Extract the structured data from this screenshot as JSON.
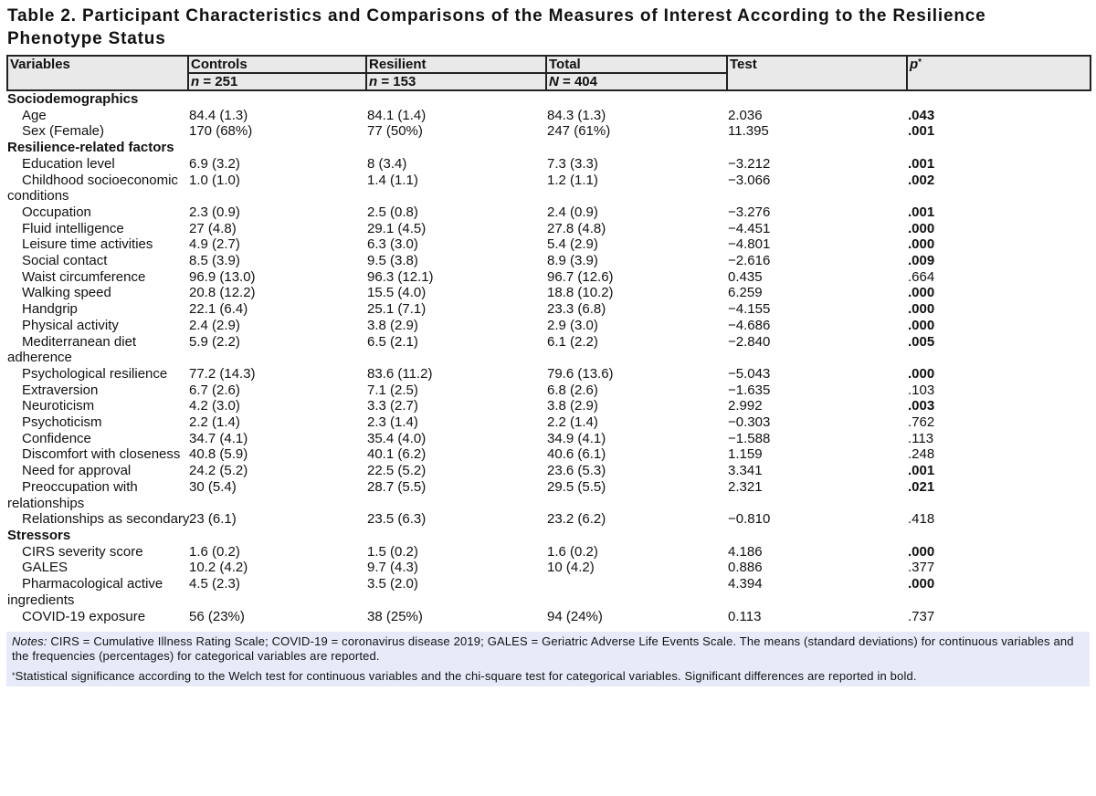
{
  "title": "Table 2. Participant Characteristics and Comparisons of the Measures of Interest According to the Resilience\nPhenotype Status",
  "colors": {
    "header_bg": "#e9e9e9",
    "border": "#222222",
    "notes_bg": "#e7ebf9",
    "text": "#111111"
  },
  "table": {
    "header": {
      "variables_label": "Variables",
      "groups": [
        {
          "label": "Controls",
          "n_symbol": "n",
          "n_rest": " = 251"
        },
        {
          "label": "Resilient",
          "n_symbol": "n",
          "n_rest": " = 153"
        },
        {
          "label": "Total",
          "n_symbol": "N",
          "n_rest": " = 404"
        }
      ],
      "test_label": "Test",
      "p_symbol": "p",
      "p_sup": "*"
    },
    "rows": [
      {
        "type": "section",
        "label": "Sociodemographics"
      },
      {
        "type": "row",
        "label": "Age",
        "controls": "84.4 (1.3)",
        "resilient": "84.1 (1.4)",
        "total": "84.3 (1.3)",
        "test": "2.036",
        "p": ".043",
        "sig": true
      },
      {
        "type": "row",
        "label": "Sex (Female)",
        "controls": "170 (68%)",
        "resilient": "77 (50%)",
        "total": "247 (61%)",
        "test": "11.395",
        "p": ".001",
        "sig": true
      },
      {
        "type": "section",
        "label": "Resilience-related factors"
      },
      {
        "type": "row",
        "label": "Education level",
        "controls": "6.9 (3.2)",
        "resilient": "8 (3.4)",
        "total": "7.3 (3.3)",
        "test": "−3.212",
        "p": ".001",
        "sig": true
      },
      {
        "type": "row",
        "label": "Childhood socioeconomic\nconditions",
        "controls": "1.0 (1.0)",
        "resilient": "1.4 (1.1)",
        "total": "1.2 (1.1)",
        "test": "−3.066",
        "p": ".002",
        "sig": true
      },
      {
        "type": "row",
        "label": "Occupation",
        "controls": "2.3 (0.9)",
        "resilient": "2.5 (0.8)",
        "total": "2.4 (0.9)",
        "test": "−3.276",
        "p": ".001",
        "sig": true
      },
      {
        "type": "row",
        "label": "Fluid intelligence",
        "controls": "27 (4.8)",
        "resilient": "29.1 (4.5)",
        "total": "27.8 (4.8)",
        "test": "−4.451",
        "p": ".000",
        "sig": true
      },
      {
        "type": "row",
        "label": "Leisure time activities",
        "controls": "4.9 (2.7)",
        "resilient": "6.3 (3.0)",
        "total": "5.4 (2.9)",
        "test": "−4.801",
        "p": ".000",
        "sig": true
      },
      {
        "type": "row",
        "label": "Social contact",
        "controls": "8.5 (3.9)",
        "resilient": "9.5 (3.8)",
        "total": "8.9 (3.9)",
        "test": "−2.616",
        "p": ".009",
        "sig": true
      },
      {
        "type": "row",
        "label": "Waist circumference",
        "controls": "96.9 (13.0)",
        "resilient": "96.3 (12.1)",
        "total": "96.7 (12.6)",
        "test": "0.435",
        "p": ".664",
        "sig": false
      },
      {
        "type": "row",
        "label": "Walking speed",
        "controls": "20.8 (12.2)",
        "resilient": "15.5 (4.0)",
        "total": "18.8 (10.2)",
        "test": "6.259",
        "p": ".000",
        "sig": true
      },
      {
        "type": "row",
        "label": "Handgrip",
        "controls": "22.1 (6.4)",
        "resilient": "25.1 (7.1)",
        "total": "23.3 (6.8)",
        "test": "−4.155",
        "p": ".000",
        "sig": true
      },
      {
        "type": "row",
        "label": "Physical activity",
        "controls": "2.4 (2.9)",
        "resilient": "3.8 (2.9)",
        "total": "2.9 (3.0)",
        "test": "−4.686",
        "p": ".000",
        "sig": true
      },
      {
        "type": "row",
        "label": "Mediterranean diet\nadherence",
        "controls": "5.9 (2.2)",
        "resilient": "6.5 (2.1)",
        "total": "6.1 (2.2)",
        "test": "−2.840",
        "p": ".005",
        "sig": true
      },
      {
        "type": "row",
        "label": "Psychological resilience",
        "controls": "77.2 (14.3)",
        "resilient": "83.6 (11.2)",
        "total": "79.6 (13.6)",
        "test": "−5.043",
        "p": ".000",
        "sig": true
      },
      {
        "type": "row",
        "label": "Extraversion",
        "controls": "6.7 (2.6)",
        "resilient": "7.1 (2.5)",
        "total": "6.8 (2.6)",
        "test": "−1.635",
        "p": ".103",
        "sig": false
      },
      {
        "type": "row",
        "label": "Neuroticism",
        "controls": "4.2 (3.0)",
        "resilient": "3.3 (2.7)",
        "total": "3.8 (2.9)",
        "test": "2.992",
        "p": ".003",
        "sig": true
      },
      {
        "type": "row",
        "label": "Psychoticism",
        "controls": "2.2 (1.4)",
        "resilient": "2.3 (1.4)",
        "total": "2.2 (1.4)",
        "test": "−0.303",
        "p": ".762",
        "sig": false
      },
      {
        "type": "row",
        "label": "Confidence",
        "controls": "34.7 (4.1)",
        "resilient": "35.4 (4.0)",
        "total": "34.9 (4.1)",
        "test": "−1.588",
        "p": ".113",
        "sig": false
      },
      {
        "type": "row",
        "label": "Discomfort with closeness",
        "controls": "40.8 (5.9)",
        "resilient": "40.1 (6.2)",
        "total": "40.6 (6.1)",
        "test": "1.159",
        "p": ".248",
        "sig": false
      },
      {
        "type": "row",
        "label": "Need for approval",
        "controls": "24.2 (5.2)",
        "resilient": "22.5 (5.2)",
        "total": "23.6 (5.3)",
        "test": "3.341",
        "p": ".001",
        "sig": true
      },
      {
        "type": "row",
        "label": "Preoccupation with\nrelationships",
        "controls": "30 (5.4)",
        "resilient": "28.7 (5.5)",
        "total": "29.5 (5.5)",
        "test": "2.321",
        "p": ".021",
        "sig": true
      },
      {
        "type": "row",
        "label": "Relationships as secondary",
        "controls": "23 (6.1)",
        "resilient": "23.5 (6.3)",
        "total": "23.2 (6.2)",
        "test": "−0.810",
        "p": ".418",
        "sig": false
      },
      {
        "type": "section",
        "label": "Stressors"
      },
      {
        "type": "row",
        "label": "CIRS severity score",
        "controls": "1.6 (0.2)",
        "resilient": "1.5 (0.2)",
        "total": "1.6 (0.2)",
        "test": "4.186",
        "p": ".000",
        "sig": true
      },
      {
        "type": "row",
        "label": "GALES",
        "controls": "10.2 (4.2)",
        "resilient": "9.7 (4.3)",
        "total": "10 (4.2)",
        "test": "0.886",
        "p": ".377",
        "sig": false
      },
      {
        "type": "row",
        "label": "Pharmacological active\ningredients",
        "controls": "4.5 (2.3)",
        "resilient": "3.5 (2.0)",
        "total": "",
        "test": "4.394",
        "p": ".000",
        "sig": true
      },
      {
        "type": "row",
        "label": "COVID-19 exposure",
        "controls": "56 (23%)",
        "resilient": "38 (25%)",
        "total": "94 (24%)",
        "test": "0.113",
        "p": ".737",
        "sig": false
      }
    ]
  },
  "notes": {
    "note1_prefix": "Notes:",
    "note1_text": " CIRS = Cumulative Illness Rating Scale; COVID-19 = coronavirus disease 2019; GALES = Geriatric Adverse Life Events Scale. The means (standard deviations) for continuous variables and\nthe frequencies (percentages) for categorical variables are reported.",
    "note2_sup": "*",
    "note2_text": "Statistical significance according to the Welch test for continuous variables and the chi-square test for categorical variables. Significant differences are reported in bold."
  }
}
